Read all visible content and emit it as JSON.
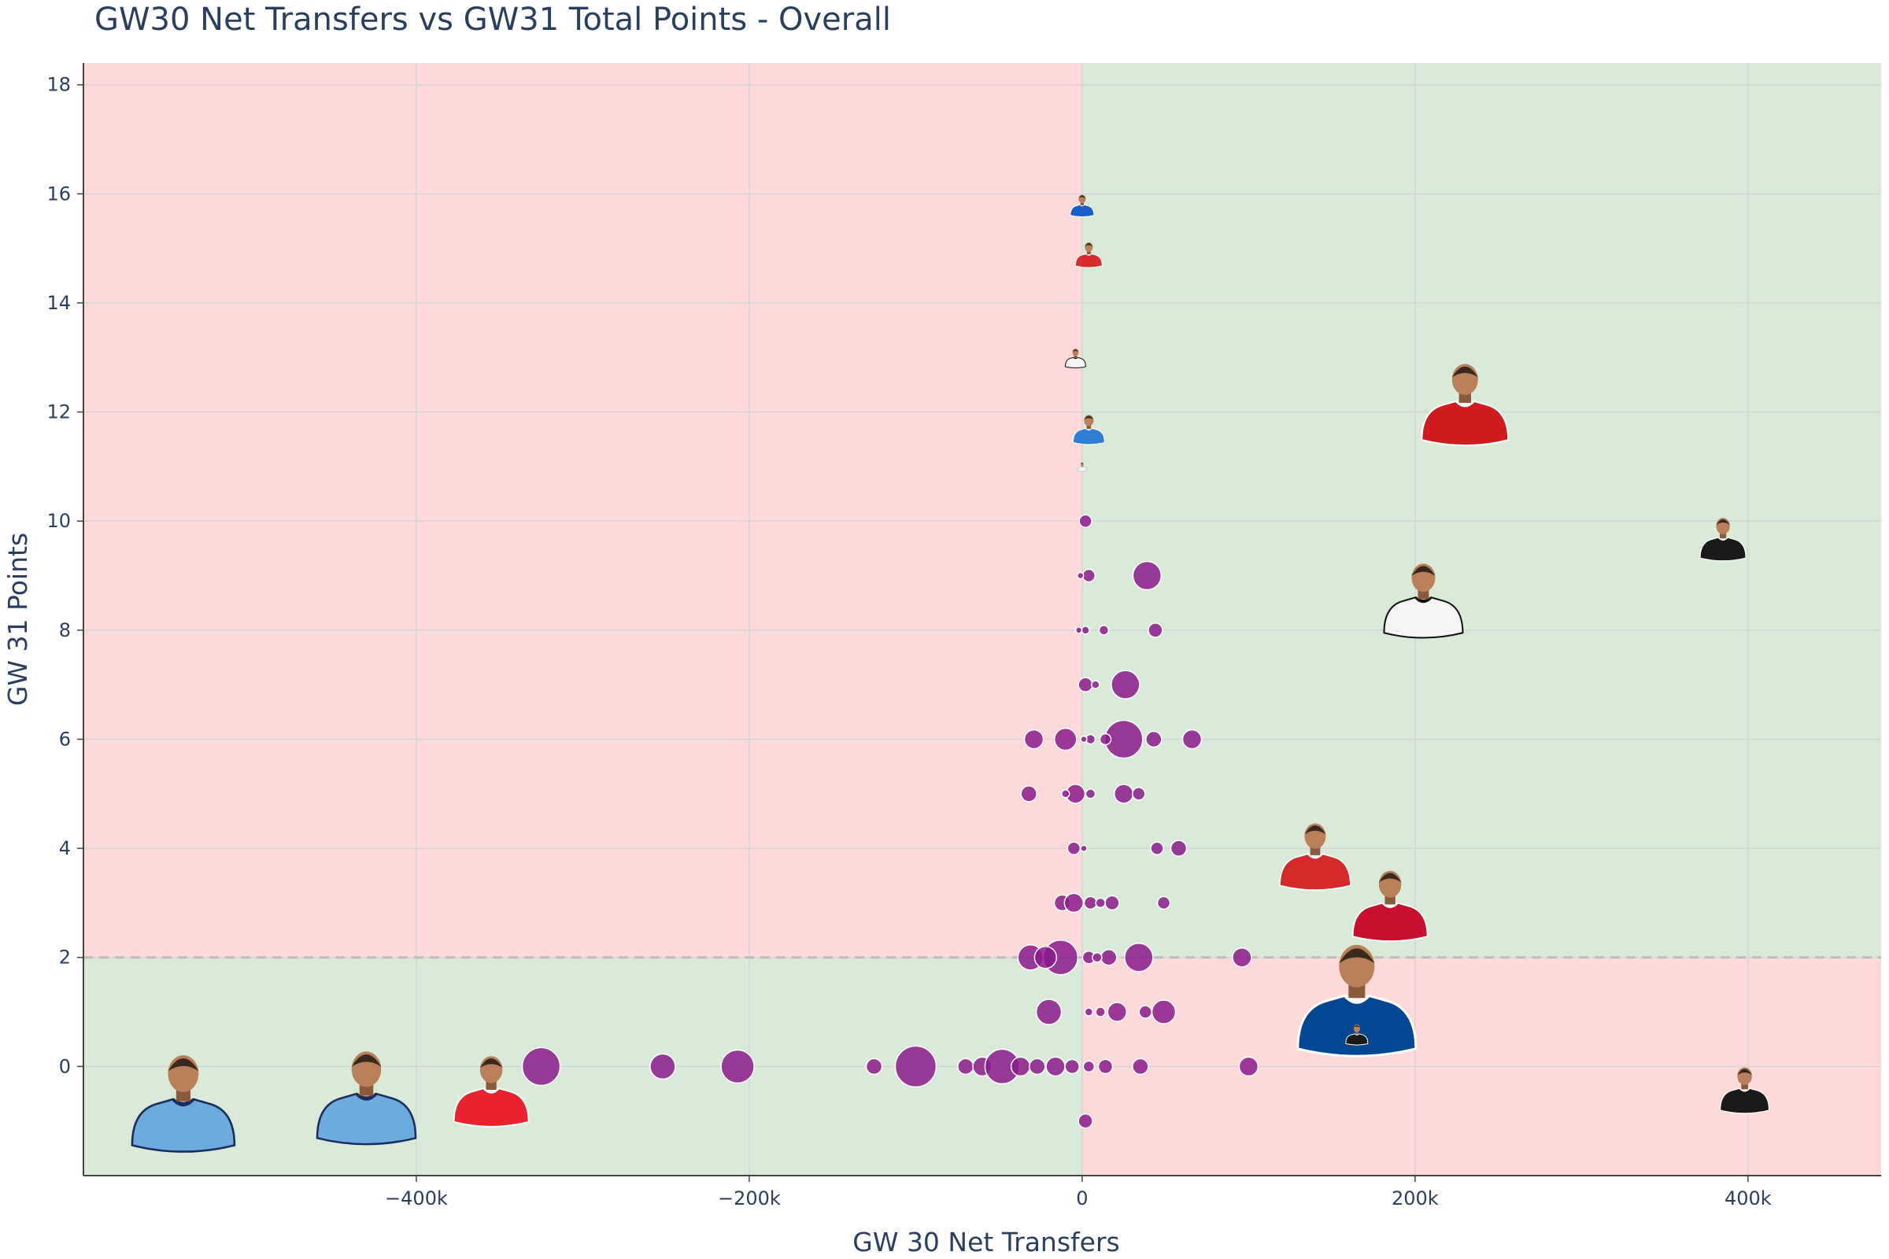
{
  "chart_data": {
    "type": "scatter",
    "title": "GW30 Net Transfers vs GW31 Total Points - Overall",
    "xlabel": "GW 30 Net Transfers",
    "ylabel": "GW 31 Points",
    "xlim": [
      -600000,
      480000
    ],
    "ylim": [
      -2,
      18.4
    ],
    "x_ticks": [
      {
        "value": -400000,
        "label": "−400k"
      },
      {
        "value": -200000,
        "label": "−200k"
      },
      {
        "value": 0,
        "label": "0"
      },
      {
        "value": 200000,
        "label": "200k"
      },
      {
        "value": 400000,
        "label": "400k"
      }
    ],
    "y_ticks": [
      {
        "value": 0,
        "label": "0"
      },
      {
        "value": 2,
        "label": "2"
      },
      {
        "value": 4,
        "label": "4"
      },
      {
        "value": 6,
        "label": "6"
      },
      {
        "value": 8,
        "label": "8"
      },
      {
        "value": 10,
        "label": "10"
      },
      {
        "value": 12,
        "label": "12"
      },
      {
        "value": 14,
        "label": "14"
      },
      {
        "value": 16,
        "label": "16"
      },
      {
        "value": 18,
        "label": "18"
      }
    ],
    "grid": true,
    "threshold_y": 2,
    "quadrant_colors": {
      "good": "#d9ead9",
      "bad": "#fdd9d9"
    },
    "marker_color": "#8b1a8b",
    "series": [
      {
        "points": [
          {
            "x": 2000,
            "y": 10,
            "size": 8
          },
          {
            "x": 39000,
            "y": 9,
            "size": 18
          },
          {
            "x": 4000,
            "y": 9,
            "size": 8
          },
          {
            "x": -1000,
            "y": 9,
            "size": 4
          },
          {
            "x": 44000,
            "y": 8,
            "size": 9
          },
          {
            "x": 13000,
            "y": 8,
            "size": 6
          },
          {
            "x": 2000,
            "y": 8,
            "size": 5
          },
          {
            "x": -2000,
            "y": 8,
            "size": 4
          },
          {
            "x": 26000,
            "y": 7,
            "size": 18
          },
          {
            "x": 2000,
            "y": 7,
            "size": 9
          },
          {
            "x": 8000,
            "y": 7,
            "size": 5
          },
          {
            "x": -29000,
            "y": 6,
            "size": 12
          },
          {
            "x": -10000,
            "y": 6,
            "size": 14
          },
          {
            "x": 25000,
            "y": 6,
            "size": 24
          },
          {
            "x": 43000,
            "y": 6,
            "size": 10
          },
          {
            "x": 66000,
            "y": 6,
            "size": 12
          },
          {
            "x": 5000,
            "y": 6,
            "size": 6
          },
          {
            "x": 14000,
            "y": 6,
            "size": 7
          },
          {
            "x": 1000,
            "y": 6,
            "size": 4
          },
          {
            "x": -32000,
            "y": 5,
            "size": 10
          },
          {
            "x": -4000,
            "y": 5,
            "size": 12
          },
          {
            "x": 25000,
            "y": 5,
            "size": 12
          },
          {
            "x": 34000,
            "y": 5,
            "size": 8
          },
          {
            "x": 5000,
            "y": 5,
            "size": 6
          },
          {
            "x": -10000,
            "y": 5,
            "size": 5
          },
          {
            "x": -5000,
            "y": 4,
            "size": 8
          },
          {
            "x": 45000,
            "y": 4,
            "size": 8
          },
          {
            "x": 58000,
            "y": 4,
            "size": 10
          },
          {
            "x": 1000,
            "y": 4,
            "size": 4
          },
          {
            "x": -12000,
            "y": 3,
            "size": 10
          },
          {
            "x": -5000,
            "y": 3,
            "size": 12
          },
          {
            "x": 5000,
            "y": 3,
            "size": 8
          },
          {
            "x": 18000,
            "y": 3,
            "size": 9
          },
          {
            "x": 49000,
            "y": 3,
            "size": 8
          },
          {
            "x": 11000,
            "y": 3,
            "size": 6
          },
          {
            "x": -31000,
            "y": 2,
            "size": 16
          },
          {
            "x": -13000,
            "y": 2,
            "size": 22
          },
          {
            "x": 4000,
            "y": 2,
            "size": 8
          },
          {
            "x": 16000,
            "y": 2,
            "size": 10
          },
          {
            "x": 34000,
            "y": 2,
            "size": 18
          },
          {
            "x": 96000,
            "y": 2,
            "size": 12
          },
          {
            "x": -22000,
            "y": 2,
            "size": 14
          },
          {
            "x": 9000,
            "y": 2,
            "size": 6
          },
          {
            "x": -20000,
            "y": 1,
            "size": 16
          },
          {
            "x": 4000,
            "y": 1,
            "size": 5
          },
          {
            "x": 21000,
            "y": 1,
            "size": 12
          },
          {
            "x": 49000,
            "y": 1,
            "size": 15
          },
          {
            "x": 38000,
            "y": 1,
            "size": 8
          },
          {
            "x": 11000,
            "y": 1,
            "size": 6
          },
          {
            "x": -325000,
            "y": 0,
            "size": 24
          },
          {
            "x": -252000,
            "y": 0,
            "size": 16
          },
          {
            "x": -207000,
            "y": 0,
            "size": 21
          },
          {
            "x": -125000,
            "y": 0,
            "size": 10
          },
          {
            "x": -100000,
            "y": 0,
            "size": 26
          },
          {
            "x": -70000,
            "y": 0,
            "size": 10
          },
          {
            "x": -60000,
            "y": 0,
            "size": 12
          },
          {
            "x": -48000,
            "y": 0,
            "size": 22
          },
          {
            "x": -37000,
            "y": 0,
            "size": 12
          },
          {
            "x": -27000,
            "y": 0,
            "size": 10
          },
          {
            "x": -16000,
            "y": 0,
            "size": 12
          },
          {
            "x": -6000,
            "y": 0,
            "size": 9
          },
          {
            "x": 4000,
            "y": 0,
            "size": 7
          },
          {
            "x": 14000,
            "y": 0,
            "size": 9
          },
          {
            "x": 35000,
            "y": 0,
            "size": 10
          },
          {
            "x": 100000,
            "y": 0,
            "size": 12
          },
          {
            "x": 2000,
            "y": -1,
            "size": 9
          }
        ]
      }
    ],
    "player_photos": [
      {
        "x": 0,
        "y": 15.8,
        "size": 30,
        "kit": "everton",
        "shirt": "#1a5fc9",
        "trim": "#ffffff"
      },
      {
        "x": 4000,
        "y": 14.9,
        "size": 34,
        "kit": "forest",
        "shirt": "#d92b2b",
        "trim": "#ffffff"
      },
      {
        "x": -4000,
        "y": 13.0,
        "size": 26,
        "kit": "fulham",
        "shirt": "#f4f4f4",
        "trim": "#111111"
      },
      {
        "x": 4000,
        "y": 11.7,
        "size": 40,
        "kit": "brighton",
        "shirt": "#2f7fd6",
        "trim": "#ffffff"
      },
      {
        "x": 0,
        "y": 11.0,
        "size": 12,
        "kit": "white",
        "shirt": "#f4f4f4",
        "trim": "#cccccc"
      },
      {
        "x": 230000,
        "y": 12.2,
        "size": 110,
        "kit": "man-utd",
        "shirt": "#d01c1f",
        "trim": "#ffffff"
      },
      {
        "x": 385000,
        "y": 9.7,
        "size": 58,
        "kit": "newcastle",
        "shirt": "#1a1a1a",
        "trim": "#ffffff"
      },
      {
        "x": 205000,
        "y": 8.6,
        "size": 100,
        "kit": "fulham",
        "shirt": "#f4f4f4",
        "trim": "#111111"
      },
      {
        "x": 140000,
        "y": 3.9,
        "size": 90,
        "kit": "brentford",
        "shirt": "#d62a2a",
        "trim": "#ffffff"
      },
      {
        "x": 185000,
        "y": 3.0,
        "size": 95,
        "kit": "liverpool",
        "shirt": "#c8102e",
        "trim": "#ffffff"
      },
      {
        "x": 165000,
        "y": 1.3,
        "size": 150,
        "kit": "chelsea",
        "shirt": "#034694",
        "trim": "#ffffff"
      },
      {
        "x": 165000,
        "y": 0.6,
        "size": 28,
        "kit": "newcastle",
        "shirt": "#1a1a1a",
        "trim": "#ffffff"
      },
      {
        "x": 398000,
        "y": -0.4,
        "size": 62,
        "kit": "newcastle",
        "shirt": "#1a1a1a",
        "trim": "#ffffff"
      },
      {
        "x": -540000,
        "y": -0.6,
        "size": 130,
        "kit": "man-city",
        "shirt": "#6cabdd",
        "trim": "#1c2c5b"
      },
      {
        "x": -430000,
        "y": -0.5,
        "size": 125,
        "kit": "man-city",
        "shirt": "#6cabdd",
        "trim": "#1c2c5b"
      },
      {
        "x": -355000,
        "y": -0.4,
        "size": 95,
        "kit": "arsenal",
        "shirt": "#e8232f",
        "trim": "#ffffff"
      }
    ]
  }
}
